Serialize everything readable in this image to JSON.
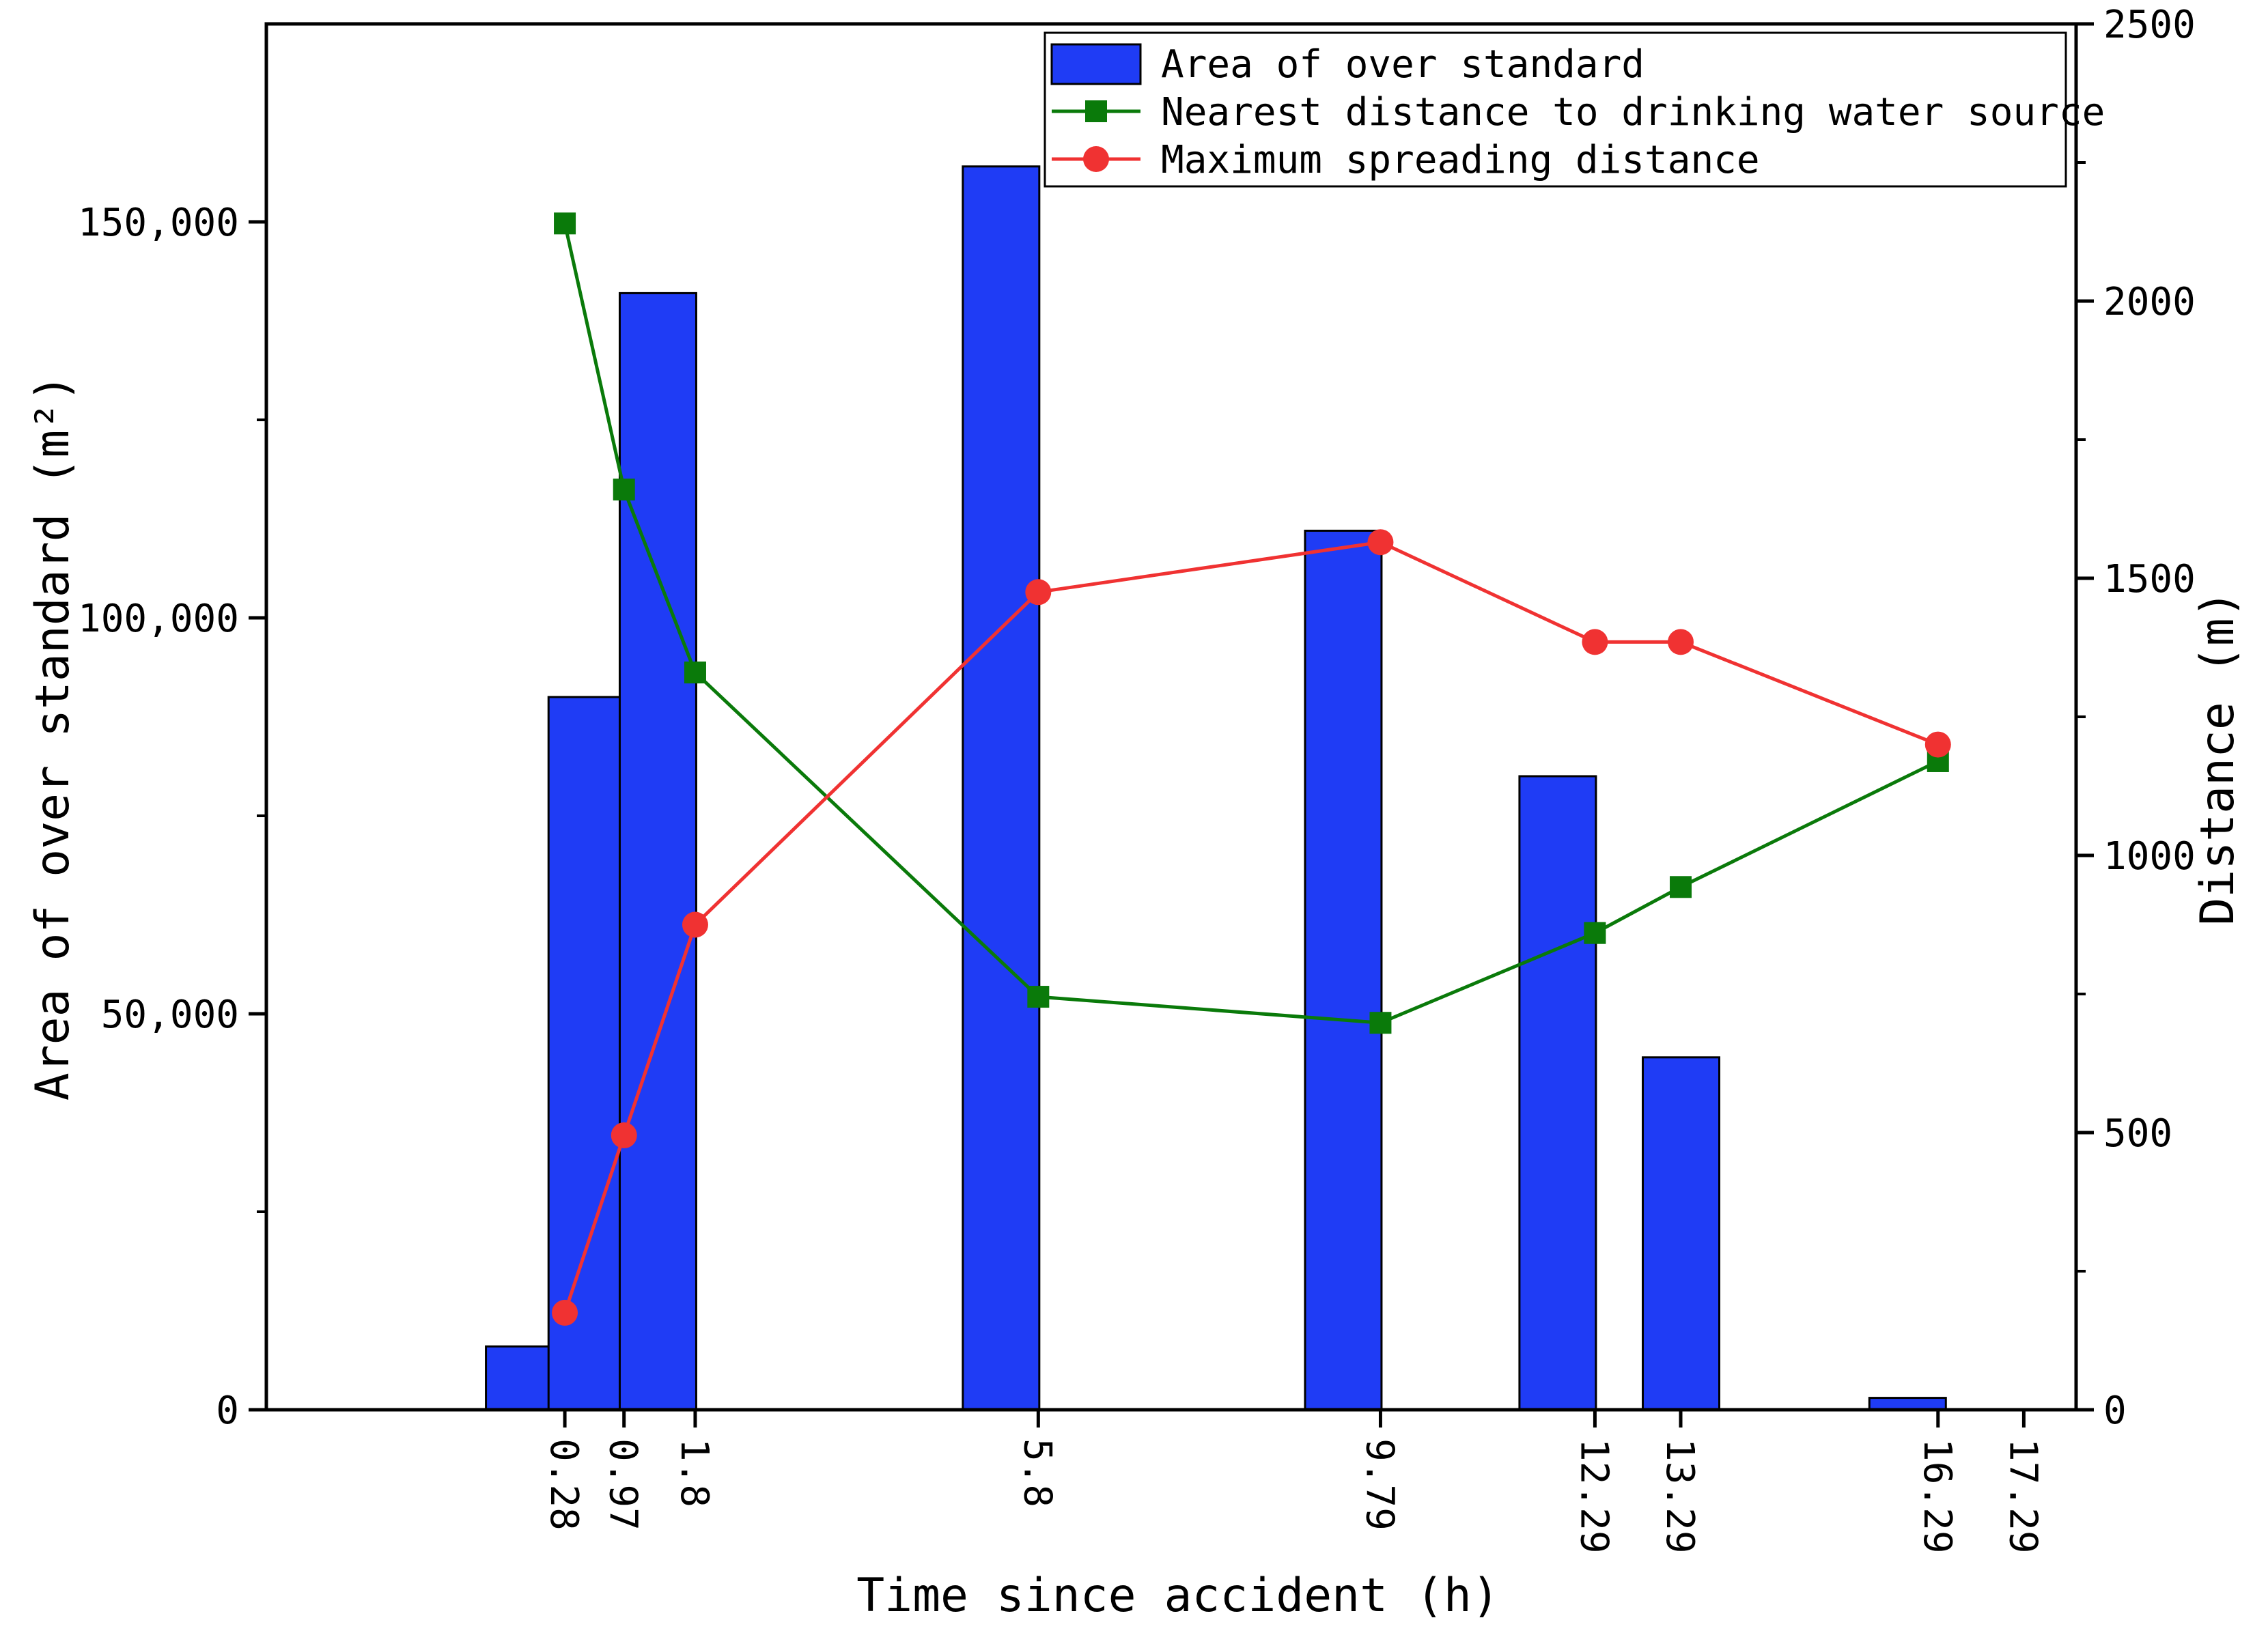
{
  "chart_data": {
    "type": "bar",
    "x": [
      0.28,
      0.97,
      1.8,
      5.8,
      9.79,
      12.29,
      13.29,
      16.29,
      17.29
    ],
    "x_tick_labels": [
      "0.28",
      "0.97",
      "1.8",
      "5.8",
      "9.79",
      "12.29",
      "13.29",
      "16.29",
      "17.29"
    ],
    "xlabel": "Time since accident (h)",
    "ylabel_left": "Area of over standard (m²)",
    "ylabel_right": "Distance (m)",
    "ylim_left": [
      0,
      175000
    ],
    "yticks_left": [
      0,
      50000,
      100000,
      150000
    ],
    "ytick_labels_left": [
      "0",
      "50,000",
      "100,000",
      "150,000"
    ],
    "ylim_right": [
      0,
      2500
    ],
    "yticks_right": [
      0,
      500,
      1000,
      1500,
      2000,
      2500
    ],
    "ytick_labels_right": [
      "0",
      "500",
      "1000",
      "1500",
      "2000",
      "2500"
    ],
    "legend_position": "top-right",
    "grid": false,
    "series": [
      {
        "name": "Area of over standard",
        "kind": "bar",
        "axis": "left",
        "color": "#1f3cf5",
        "values": [
          8000,
          90000,
          141000,
          157000,
          111000,
          80000,
          44500,
          1500,
          null
        ]
      },
      {
        "name": "Nearest distance to drinking water source",
        "kind": "line",
        "marker": "square",
        "axis": "right",
        "color": "#0a7a0a",
        "values": [
          2140,
          1660,
          1330,
          null,
          null,
          null,
          null,
          null,
          null
        ],
        "points": [
          {
            "x": 0.28,
            "y": 2140
          },
          {
            "x": 0.97,
            "y": 1660
          },
          {
            "x": 1.8,
            "y": 1330
          },
          {
            "x": 5.8,
            "y": 745
          },
          {
            "x": 9.79,
            "y": 698
          },
          {
            "x": 12.29,
            "y": 860
          },
          {
            "x": 13.29,
            "y": 943
          },
          {
            "x": 16.29,
            "y": 1170
          }
        ]
      },
      {
        "name": "Maximum spreading distance",
        "kind": "line",
        "marker": "circle",
        "axis": "right",
        "color": "#f03232",
        "points": [
          {
            "x": 0.28,
            "y": 175
          },
          {
            "x": 0.97,
            "y": 495
          },
          {
            "x": 1.8,
            "y": 875
          },
          {
            "x": 5.8,
            "y": 1475
          },
          {
            "x": 9.79,
            "y": 1565
          },
          {
            "x": 12.29,
            "y": 1385
          },
          {
            "x": 13.29,
            "y": 1385
          },
          {
            "x": 16.29,
            "y": 1200
          }
        ]
      }
    ]
  }
}
